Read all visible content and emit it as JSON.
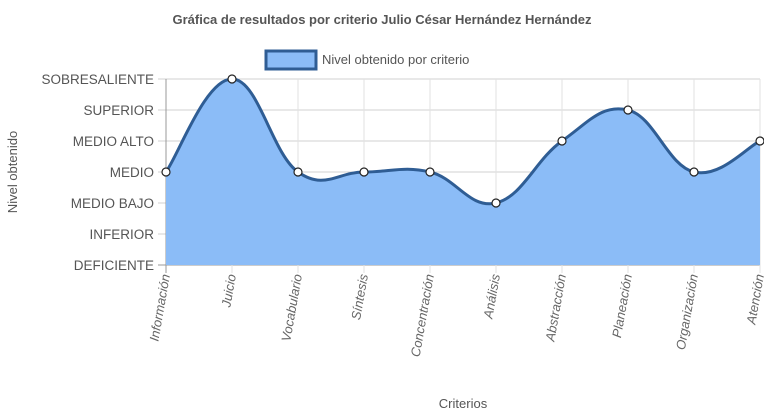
{
  "chart_data": {
    "type": "area",
    "title": "Gráfica de resultados por criterio Julio César Hernández Hernández",
    "xlabel": "Criterios",
    "ylabel": "Nivel obtenido",
    "categories": [
      "Información",
      "Juicio",
      "Vocabulario",
      "Síntesis",
      "Concentración",
      "Análisis",
      "Abstracción",
      "Planeación",
      "Organización",
      "Atención"
    ],
    "y_levels": [
      "DEFICIENTE",
      "INFERIOR",
      "MEDIO BAJO",
      "MEDIO",
      "MEDIO ALTO",
      "SUPERIOR",
      "SOBRESALIENTE"
    ],
    "ylim": [
      0,
      6
    ],
    "series": [
      {
        "name": "Nivel obtenido por criterio",
        "values": [
          3,
          6,
          3,
          3,
          3,
          2,
          4,
          5,
          3,
          4
        ],
        "color": "#2f5d94",
        "fill": "#8bbcf7"
      }
    ],
    "grid": true,
    "legend_position": "top-center"
  }
}
